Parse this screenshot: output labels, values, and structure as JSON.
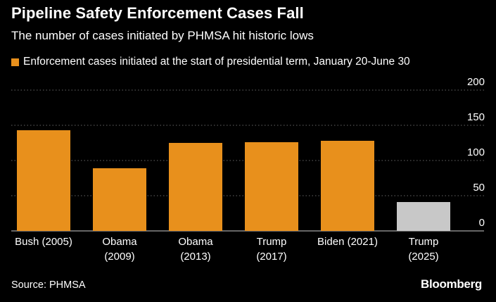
{
  "header": {
    "title": "Pipeline Safety Enforcement Cases Fall",
    "subtitle": "The number of cases initiated by PHMSA hit historic lows"
  },
  "legend": {
    "label": "Enforcement cases initiated at the start of presidential term, January 20-June 30"
  },
  "footer": {
    "source": "Source: PHMSA",
    "brand": "Bloomberg"
  },
  "colors": {
    "bar": "#e8901c",
    "highlight_bar": "#c8c8c8",
    "gridline": "#666666",
    "background": "#000000"
  },
  "chart_data": {
    "type": "bar",
    "title": "Pipeline Safety Enforcement Cases Fall",
    "xlabel": "",
    "ylabel": "",
    "ylim": [
      0,
      200
    ],
    "yticks": [
      0,
      50,
      100,
      150,
      200
    ],
    "y_axis_position": "right",
    "grid": true,
    "categories": [
      [
        "Bush (2005)"
      ],
      [
        "Obama",
        "(2009)"
      ],
      [
        "Obama",
        "(2013)"
      ],
      [
        "Trump",
        "(2017)"
      ],
      [
        "Biden (2021)"
      ],
      [
        "Trump",
        "(2025)"
      ]
    ],
    "values": [
      143,
      89,
      125,
      126,
      128,
      41
    ],
    "bar_colors": [
      "#e8901c",
      "#e8901c",
      "#e8901c",
      "#e8901c",
      "#e8901c",
      "#c8c8c8"
    ]
  }
}
